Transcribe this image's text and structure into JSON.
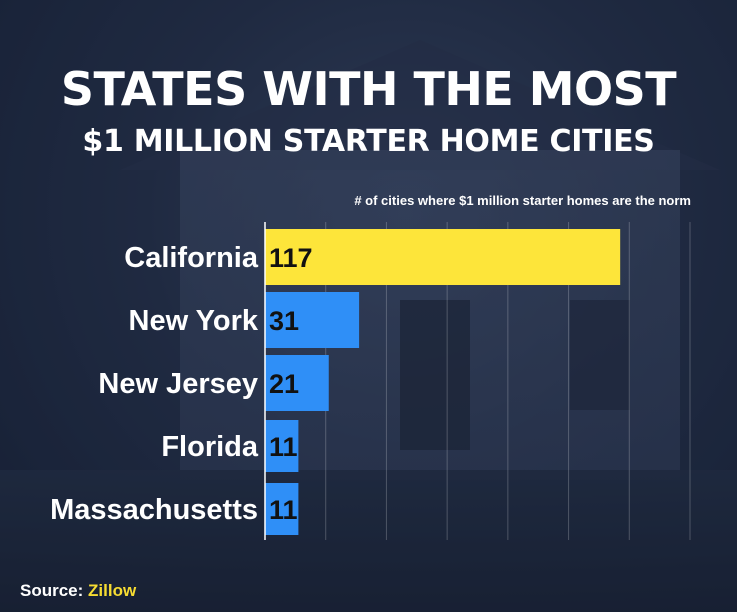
{
  "header": {
    "title_line1": "STATES WITH THE MOST",
    "title_line2": "$1 MILLION STARTER HOME CITIES",
    "subtitle": "# of cities where $1 million starter homes are the norm"
  },
  "footer": {
    "source_label": "Source:",
    "source_name": "Zillow"
  },
  "colors": {
    "highlight_bar": "#fde53a",
    "bar": "#2f8ff7",
    "value_text": "#111111",
    "label_text": "#ffffff",
    "source_accent": "#f6dc32",
    "background": "#1f2a3f"
  },
  "chart_data": {
    "type": "bar",
    "orientation": "horizontal",
    "title": "STATES WITH THE MOST $1 MILLION STARTER HOME CITIES",
    "subtitle": "# of cities where $1 million starter homes are the norm",
    "categories": [
      "California",
      "New York",
      "New Jersey",
      "Florida",
      "Massachusetts"
    ],
    "values": [
      117,
      31,
      21,
      11,
      11
    ],
    "highlight": "California",
    "xlim": [
      0,
      140
    ],
    "grid": true,
    "legend": "none"
  }
}
